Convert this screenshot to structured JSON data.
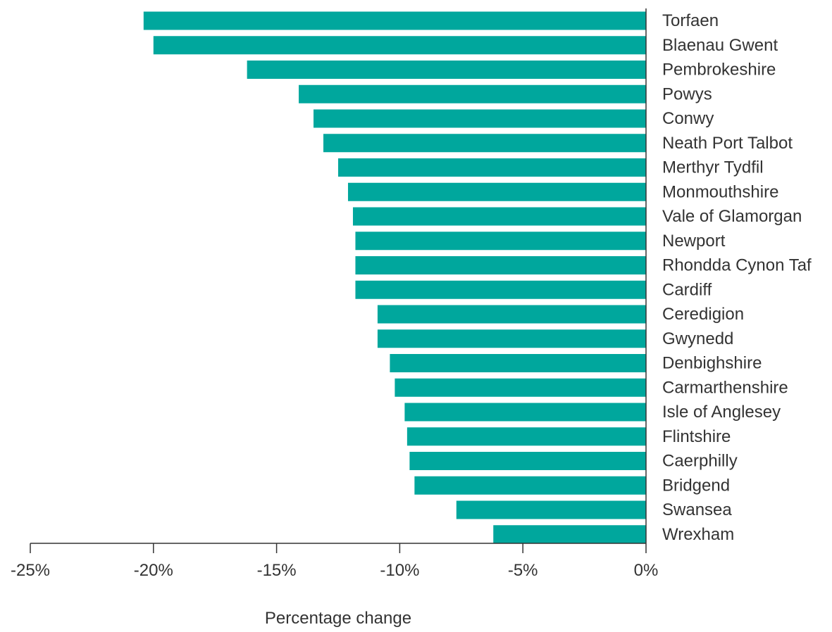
{
  "chart_data": {
    "type": "bar",
    "orientation": "horizontal",
    "title": "",
    "xlabel": "Percentage change",
    "ylabel": "",
    "categories": [
      "Torfaen",
      "Blaenau Gwent",
      "Pembrokeshire",
      "Powys",
      "Conwy",
      "Neath Port Talbot",
      "Merthyr Tydfil",
      "Monmouthshire",
      "Vale of Glamorgan",
      "Newport",
      "Rhondda Cynon Taf",
      "Cardiff",
      "Ceredigion",
      "Gwynedd",
      "Denbighshire",
      "Carmarthenshire",
      "Isle of Anglesey",
      "Flintshire",
      "Caerphilly",
      "Bridgend",
      "Swansea",
      "Wrexham"
    ],
    "series": [
      {
        "values": [
          -20.4,
          -20.0,
          -16.2,
          -14.1,
          -13.5,
          -13.1,
          -12.5,
          -12.1,
          -11.9,
          -11.8,
          -11.8,
          -11.8,
          -10.9,
          -10.9,
          -10.4,
          -10.2,
          -9.8,
          -9.7,
          -9.6,
          -9.4,
          -7.7,
          -6.2
        ],
        "color": "#00a79d"
      }
    ],
    "xlim": [
      -25,
      0
    ],
    "xticks": [
      -25,
      -20,
      -15,
      -10,
      -5,
      0
    ],
    "xtick_labels": [
      "-25%",
      "-20%",
      "-15%",
      "-10%",
      "-5%",
      "0%"
    ],
    "grid": false,
    "legend": "none",
    "axis_color": "#333333"
  }
}
